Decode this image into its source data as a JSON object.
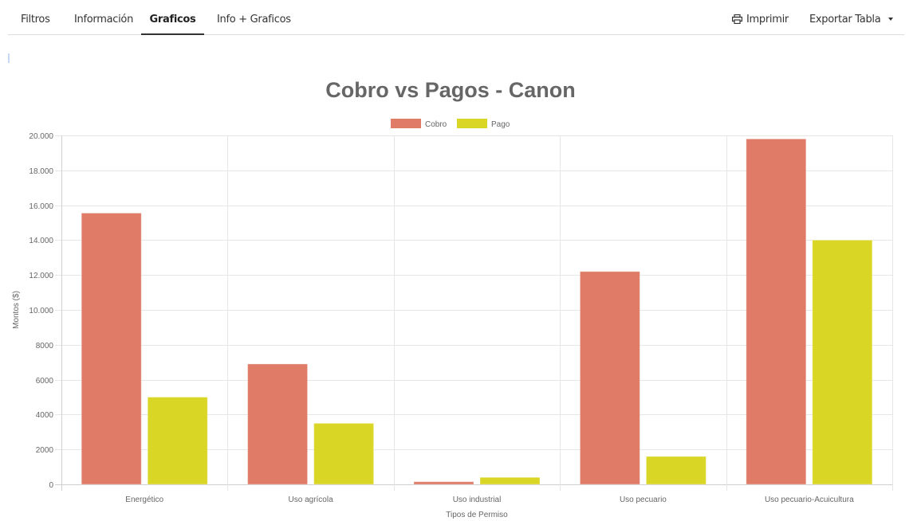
{
  "tabs": [
    {
      "label": "Filtros",
      "active": false
    },
    {
      "label": "Información",
      "active": false
    },
    {
      "label": "Graficos",
      "active": true
    },
    {
      "label": "Info + Graficos",
      "active": false
    }
  ],
  "actions": {
    "print_label": "Imprimir",
    "print_icon": "printer-icon",
    "export_label": "Exportar Tabla",
    "export_icon": "caret-down-icon"
  },
  "chart_data": {
    "type": "bar",
    "title": "Cobro vs Pagos - Canon",
    "xlabel": "Tipos de Permiso",
    "ylabel": "Montos ($)",
    "categories": [
      "Energético",
      "Uso agrícola",
      "Uso industrial",
      "Uso pecuario",
      "Uso pecuario-Acuicultura"
    ],
    "series": [
      {
        "name": "Cobro",
        "color": "#df7b67",
        "values": [
          15550,
          6900,
          150,
          12200,
          19800
        ]
      },
      {
        "name": "Pago",
        "color": "#dad626",
        "values": [
          5000,
          3500,
          400,
          1600,
          14000
        ]
      }
    ],
    "ylim": [
      0,
      20000
    ],
    "yticks": [
      {
        "value": 0,
        "label": "0"
      },
      {
        "value": 2000,
        "label": "2000"
      },
      {
        "value": 4000,
        "label": "4000"
      },
      {
        "value": 6000,
        "label": "6000"
      },
      {
        "value": 8000,
        "label": "8000"
      },
      {
        "value": 10000,
        "label": "10.000"
      },
      {
        "value": 12000,
        "label": "12.000"
      },
      {
        "value": 14000,
        "label": "14.000"
      },
      {
        "value": 16000,
        "label": "16.000"
      },
      {
        "value": 18000,
        "label": "18.000"
      },
      {
        "value": 20000,
        "label": "20.000"
      }
    ],
    "grid": true,
    "legend": "top-center"
  }
}
